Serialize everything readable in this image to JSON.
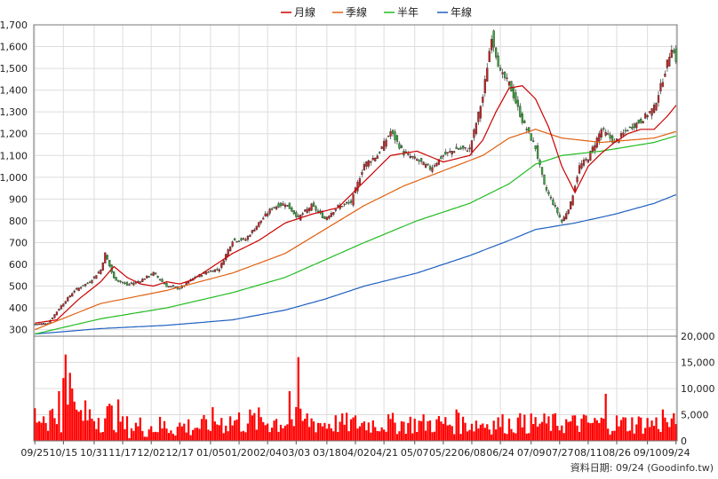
{
  "chart_data": [
    {
      "type": "candlestick",
      "legend_position": "top",
      "legend": [
        {
          "name": "月線",
          "color": "#cc0000"
        },
        {
          "name": "季線",
          "color": "#e06010"
        },
        {
          "name": "半年",
          "color": "#22bb22"
        },
        {
          "name": "年線",
          "color": "#1f5fbf"
        }
      ],
      "up_color": "#cc2222",
      "down_color": "#33aa33",
      "grid": true,
      "ylim": [
        270,
        1700
      ],
      "yticks": [
        "300",
        "400",
        "500",
        "600",
        "700",
        "800",
        "900",
        "1,000",
        "1,100",
        "1,200",
        "1,300",
        "1,400",
        "1,500",
        "1,600",
        "1,700"
      ],
      "ytick_values": [
        300,
        400,
        500,
        600,
        700,
        800,
        900,
        1000,
        1100,
        1200,
        1300,
        1400,
        1500,
        1600,
        1700
      ],
      "close_anchors": [
        [
          0,
          325
        ],
        [
          6,
          330
        ],
        [
          12,
          410
        ],
        [
          18,
          480
        ],
        [
          25,
          520
        ],
        [
          30,
          575
        ],
        [
          32,
          650
        ],
        [
          36,
          535
        ],
        [
          42,
          505
        ],
        [
          48,
          525
        ],
        [
          54,
          560
        ],
        [
          60,
          500
        ],
        [
          66,
          490
        ],
        [
          72,
          535
        ],
        [
          78,
          565
        ],
        [
          84,
          580
        ],
        [
          90,
          710
        ],
        [
          96,
          715
        ],
        [
          102,
          790
        ],
        [
          108,
          860
        ],
        [
          114,
          880
        ],
        [
          120,
          815
        ],
        [
          126,
          870
        ],
        [
          132,
          810
        ],
        [
          138,
          865
        ],
        [
          144,
          885
        ],
        [
          150,
          1060
        ],
        [
          156,
          1100
        ],
        [
          162,
          1210
        ],
        [
          168,
          1110
        ],
        [
          174,
          1080
        ],
        [
          180,
          1040
        ],
        [
          186,
          1100
        ],
        [
          192,
          1130
        ],
        [
          198,
          1130
        ],
        [
          204,
          1370
        ],
        [
          208,
          1650
        ],
        [
          212,
          1480
        ],
        [
          216,
          1430
        ],
        [
          222,
          1260
        ],
        [
          228,
          1135
        ],
        [
          232,
          960
        ],
        [
          236,
          880
        ],
        [
          240,
          795
        ],
        [
          244,
          880
        ],
        [
          248,
          1050
        ],
        [
          252,
          1090
        ],
        [
          258,
          1220
        ],
        [
          264,
          1160
        ],
        [
          270,
          1220
        ],
        [
          276,
          1260
        ],
        [
          282,
          1320
        ],
        [
          286,
          1450
        ],
        [
          290,
          1600
        ],
        [
          292,
          1540
        ]
      ],
      "month_anchors": [
        [
          0,
          330
        ],
        [
          10,
          345
        ],
        [
          20,
          440
        ],
        [
          30,
          520
        ],
        [
          36,
          590
        ],
        [
          42,
          540
        ],
        [
          48,
          510
        ],
        [
          54,
          500
        ],
        [
          60,
          520
        ],
        [
          66,
          510
        ],
        [
          72,
          530
        ],
        [
          78,
          570
        ],
        [
          90,
          650
        ],
        [
          102,
          710
        ],
        [
          114,
          790
        ],
        [
          126,
          830
        ],
        [
          138,
          860
        ],
        [
          150,
          980
        ],
        [
          162,
          1100
        ],
        [
          174,
          1120
        ],
        [
          186,
          1070
        ],
        [
          198,
          1100
        ],
        [
          204,
          1170
        ],
        [
          210,
          1300
        ],
        [
          216,
          1410
        ],
        [
          222,
          1420
        ],
        [
          228,
          1360
        ],
        [
          234,
          1230
        ],
        [
          240,
          1050
        ],
        [
          246,
          930
        ],
        [
          252,
          1050
        ],
        [
          258,
          1110
        ],
        [
          264,
          1160
        ],
        [
          270,
          1200
        ],
        [
          276,
          1220
        ],
        [
          282,
          1220
        ],
        [
          288,
          1280
        ],
        [
          292,
          1330
        ]
      ],
      "quarter_anchors": [
        [
          0,
          300
        ],
        [
          30,
          420
        ],
        [
          60,
          480
        ],
        [
          90,
          560
        ],
        [
          114,
          650
        ],
        [
          132,
          760
        ],
        [
          150,
          870
        ],
        [
          168,
          960
        ],
        [
          186,
          1030
        ],
        [
          204,
          1100
        ],
        [
          216,
          1180
        ],
        [
          228,
          1220
        ],
        [
          240,
          1180
        ],
        [
          258,
          1160
        ],
        [
          270,
          1170
        ],
        [
          282,
          1180
        ],
        [
          292,
          1210
        ]
      ],
      "half_anchors": [
        [
          0,
          280
        ],
        [
          30,
          350
        ],
        [
          60,
          400
        ],
        [
          90,
          470
        ],
        [
          114,
          540
        ],
        [
          132,
          620
        ],
        [
          150,
          700
        ],
        [
          174,
          800
        ],
        [
          198,
          880
        ],
        [
          216,
          970
        ],
        [
          228,
          1060
        ],
        [
          240,
          1100
        ],
        [
          258,
          1120
        ],
        [
          270,
          1140
        ],
        [
          282,
          1160
        ],
        [
          292,
          1190
        ]
      ],
      "year_anchors": [
        [
          0,
          280
        ],
        [
          30,
          305
        ],
        [
          60,
          320
        ],
        [
          90,
          345
        ],
        [
          114,
          390
        ],
        [
          132,
          440
        ],
        [
          150,
          500
        ],
        [
          174,
          560
        ],
        [
          198,
          640
        ],
        [
          216,
          710
        ],
        [
          228,
          760
        ],
        [
          246,
          790
        ],
        [
          264,
          830
        ],
        [
          282,
          880
        ],
        [
          292,
          920
        ]
      ],
      "volume_ylim": [
        0,
        20000
      ],
      "volume_ticks": [
        "0",
        "5,000",
        "10,000",
        "15,000",
        "20,000"
      ],
      "volume_tick_values": [
        0,
        5000,
        10000,
        15000,
        20000
      ],
      "volume_color": "#ff0000",
      "x_tick_labels": [
        "09/25",
        "10/15",
        "10/31",
        "11/17",
        "12/02",
        "12/17",
        "01/05",
        "01/20",
        "02/04",
        "03/03",
        "03/18",
        "04/02",
        "04/21",
        "05/07",
        "05/22",
        "06/08",
        "06/24",
        "07/09",
        "07/27",
        "08/11",
        "08/26",
        "09/10",
        "09/24"
      ],
      "source_note": "資料日期: 09/24 (Goodinfo.tw)"
    }
  ]
}
